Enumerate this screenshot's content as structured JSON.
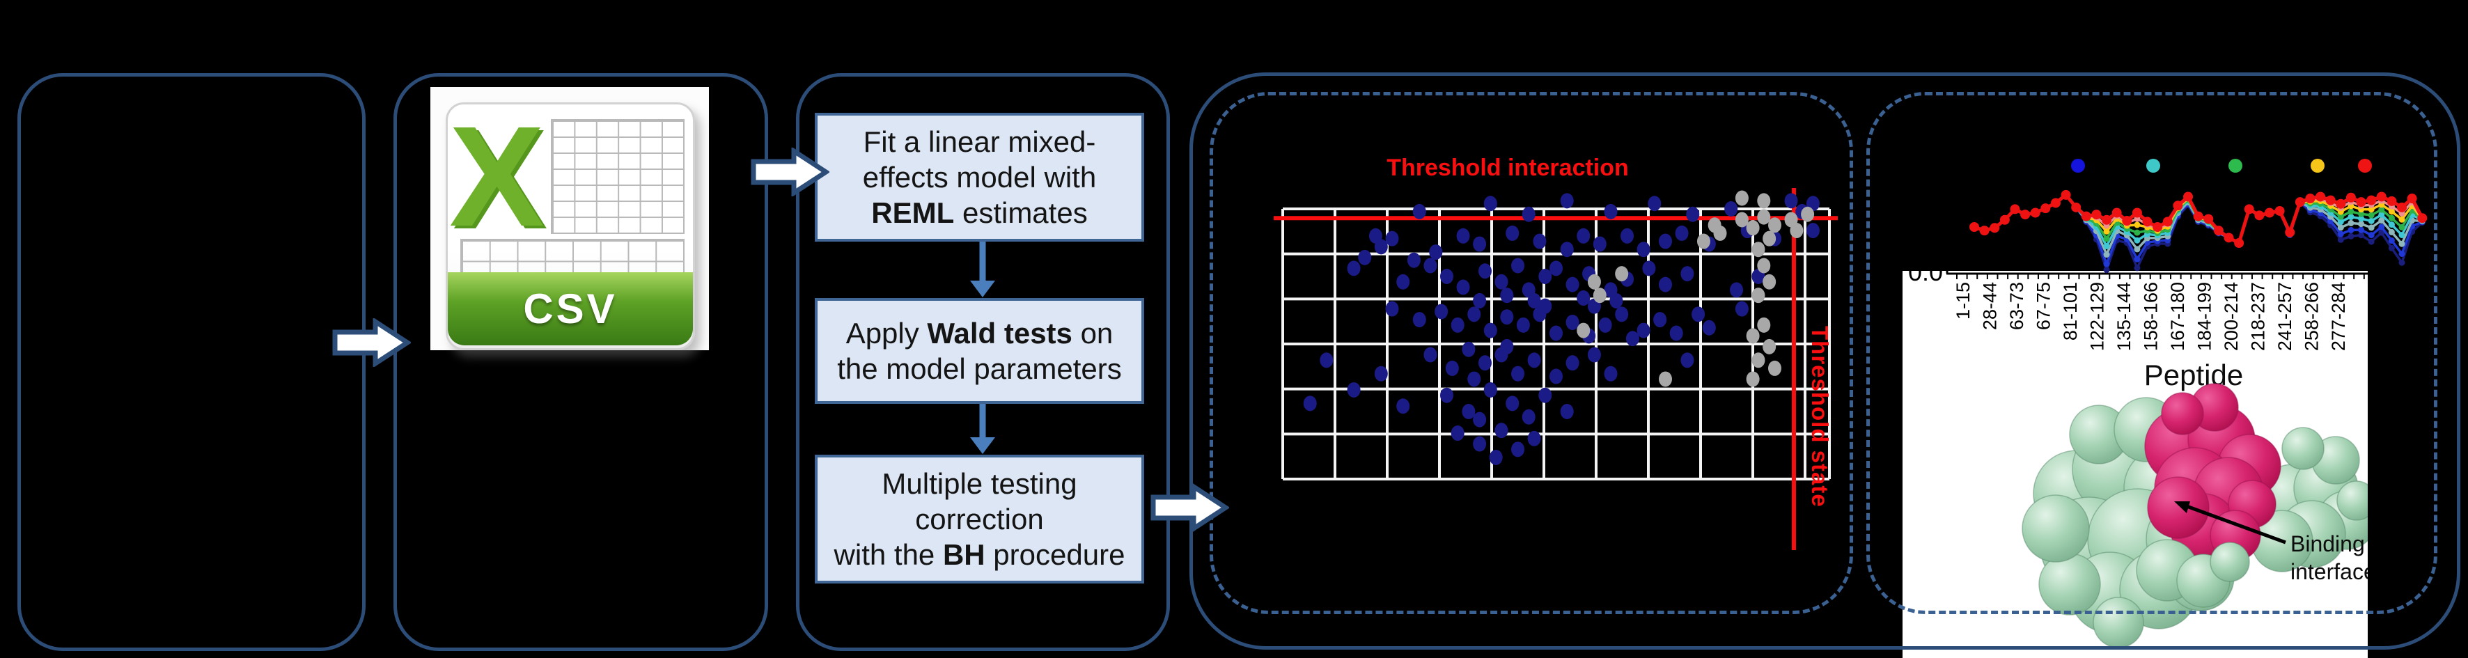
{
  "colors": {
    "background": "#000000",
    "panel_border": "#2d4d79",
    "dashed_border": "#3a6191",
    "flow_box_fill": "#dce6f4",
    "flow_box_border": "#3f6695",
    "flow_arrow": "#4a7ebc",
    "block_arrow_fill": "#ffffff",
    "threshold_red": "#f90f0f",
    "grid_line": "#f4f4f4",
    "scatter_blue": "#1b1b87",
    "scatter_gray": "#a8a8a8",
    "csv_green": "#5ea226"
  },
  "csv_icon": {
    "letter": "X",
    "banner": "CSV"
  },
  "pipeline": {
    "steps": [
      {
        "lines": [
          "Fit a linear mixed-",
          "effects model with",
          "**REML** estimates"
        ]
      },
      {
        "lines": [
          "Apply **Wald tests** on",
          "the model parameters"
        ]
      },
      {
        "lines": [
          "Multiple testing",
          "correction",
          "with the **BH** procedure"
        ]
      }
    ]
  },
  "chart_data": [
    {
      "type": "scatter",
      "title": "Threshold interaction",
      "state_label": "Threshold state",
      "grid": {
        "cols": 10,
        "rows": 6,
        "grid_on": true
      },
      "threshold_interaction_y": 0.034,
      "threshold_state_x": 0.935,
      "series": [
        {
          "name": "interaction-points",
          "color": "#1b1b87",
          "points": [
            [
              0.25,
              0.01
            ],
            [
              0.38,
              -0.02
            ],
            [
              0.45,
              0.02
            ],
            [
              0.52,
              -0.03
            ],
            [
              0.6,
              0.01
            ],
            [
              0.68,
              -0.02
            ],
            [
              0.75,
              0.02
            ],
            [
              0.82,
              0.0
            ],
            [
              0.93,
              -0.03
            ],
            [
              0.95,
              0.01
            ],
            [
              0.97,
              -0.02
            ],
            [
              0.17,
              0.1
            ],
            [
              0.18,
              0.14
            ],
            [
              0.2,
              0.11
            ],
            [
              0.28,
              0.16
            ],
            [
              0.33,
              0.1
            ],
            [
              0.36,
              0.13
            ],
            [
              0.42,
              0.09
            ],
            [
              0.47,
              0.12
            ],
            [
              0.52,
              0.15
            ],
            [
              0.55,
              0.1
            ],
            [
              0.58,
              0.13
            ],
            [
              0.63,
              0.1
            ],
            [
              0.66,
              0.15
            ],
            [
              0.7,
              0.12
            ],
            [
              0.73,
              0.09
            ],
            [
              0.78,
              0.13
            ],
            [
              0.85,
              0.08
            ],
            [
              0.9,
              0.11
            ],
            [
              0.97,
              0.08
            ],
            [
              0.15,
              0.18
            ],
            [
              0.24,
              0.19
            ],
            [
              0.13,
              0.22
            ],
            [
              0.22,
              0.27
            ],
            [
              0.27,
              0.21
            ],
            [
              0.3,
              0.25
            ],
            [
              0.33,
              0.29
            ],
            [
              0.37,
              0.23
            ],
            [
              0.4,
              0.27
            ],
            [
              0.43,
              0.21
            ],
            [
              0.45,
              0.3
            ],
            [
              0.48,
              0.25
            ],
            [
              0.5,
              0.22
            ],
            [
              0.53,
              0.28
            ],
            [
              0.56,
              0.24
            ],
            [
              0.6,
              0.3
            ],
            [
              0.63,
              0.26
            ],
            [
              0.67,
              0.22
            ],
            [
              0.7,
              0.28
            ],
            [
              0.74,
              0.24
            ],
            [
              0.55,
              0.33
            ],
            [
              0.46,
              0.34
            ],
            [
              0.41,
              0.32
            ],
            [
              0.36,
              0.34
            ],
            [
              0.61,
              0.34
            ],
            [
              0.87,
              0.25
            ],
            [
              0.83,
              0.3
            ],
            [
              0.2,
              0.37
            ],
            [
              0.25,
              0.41
            ],
            [
              0.29,
              0.38
            ],
            [
              0.32,
              0.43
            ],
            [
              0.35,
              0.39
            ],
            [
              0.38,
              0.45
            ],
            [
              0.41,
              0.4
            ],
            [
              0.44,
              0.43
            ],
            [
              0.47,
              0.39
            ],
            [
              0.5,
              0.46
            ],
            [
              0.53,
              0.42
            ],
            [
              0.56,
              0.47
            ],
            [
              0.59,
              0.43
            ],
            [
              0.62,
              0.39
            ],
            [
              0.66,
              0.45
            ],
            [
              0.69,
              0.41
            ],
            [
              0.72,
              0.46
            ],
            [
              0.76,
              0.39
            ],
            [
              0.64,
              0.48
            ],
            [
              0.57,
              0.36
            ],
            [
              0.48,
              0.36
            ],
            [
              0.78,
              0.44
            ],
            [
              0.84,
              0.37
            ],
            [
              0.08,
              0.56
            ],
            [
              0.18,
              0.61
            ],
            [
              0.27,
              0.54
            ],
            [
              0.31,
              0.59
            ],
            [
              0.34,
              0.52
            ],
            [
              0.37,
              0.57
            ],
            [
              0.4,
              0.54
            ],
            [
              0.43,
              0.61
            ],
            [
              0.46,
              0.56
            ],
            [
              0.5,
              0.62
            ],
            [
              0.53,
              0.57
            ],
            [
              0.57,
              0.54
            ],
            [
              0.6,
              0.61
            ],
            [
              0.35,
              0.63
            ],
            [
              0.41,
              0.51
            ],
            [
              0.74,
              0.56
            ],
            [
              0.05,
              0.72
            ],
            [
              0.13,
              0.67
            ],
            [
              0.22,
              0.73
            ],
            [
              0.3,
              0.69
            ],
            [
              0.34,
              0.75
            ],
            [
              0.38,
              0.67
            ],
            [
              0.42,
              0.72
            ],
            [
              0.45,
              0.77
            ],
            [
              0.48,
              0.69
            ],
            [
              0.52,
              0.75
            ],
            [
              0.36,
              0.78
            ],
            [
              0.32,
              0.83
            ],
            [
              0.36,
              0.87
            ],
            [
              0.4,
              0.82
            ],
            [
              0.43,
              0.89
            ],
            [
              0.39,
              0.92
            ],
            [
              0.46,
              0.85
            ]
          ]
        },
        {
          "name": "state-points",
          "color": "#a8a8a8",
          "points": [
            [
              0.57,
              0.27
            ],
            [
              0.58,
              0.32
            ],
            [
              0.62,
              0.24
            ],
            [
              0.77,
              0.12
            ],
            [
              0.79,
              0.06
            ],
            [
              0.8,
              0.09
            ],
            [
              0.84,
              0.04
            ],
            [
              0.86,
              0.07
            ],
            [
              0.88,
              0.03
            ],
            [
              0.89,
              0.11
            ],
            [
              0.9,
              0.06
            ],
            [
              0.87,
              0.15
            ],
            [
              0.88,
              0.21
            ],
            [
              0.89,
              0.27
            ],
            [
              0.87,
              0.32
            ],
            [
              0.88,
              0.43
            ],
            [
              0.86,
              0.47
            ],
            [
              0.89,
              0.51
            ],
            [
              0.87,
              0.56
            ],
            [
              0.9,
              0.59
            ],
            [
              0.7,
              0.63
            ],
            [
              0.86,
              0.63
            ],
            [
              0.55,
              0.45
            ],
            [
              0.93,
              0.04
            ],
            [
              0.96,
              0.02
            ],
            [
              0.94,
              0.08
            ],
            [
              0.84,
              -0.04
            ],
            [
              0.88,
              -0.03
            ]
          ]
        }
      ]
    },
    {
      "type": "line",
      "xlabel": "Peptide",
      "y_tick_label": "0.0",
      "categories": [
        "1-15",
        "28-44",
        "63-73",
        "67-75",
        "81-101",
        "122-129",
        "135-144",
        "158-166",
        "167-180",
        "184-199",
        "200-214",
        "218-237",
        "241-257",
        "258-266",
        "277-284"
      ],
      "points_per_category": 3,
      "legend_dot_colors": [
        "#1414dd",
        "#3ec8c8",
        "#2ebb4e",
        "#f5c51a",
        "#ee1414"
      ],
      "base": [
        0.5,
        0.46,
        0.49,
        0.58,
        0.7,
        0.64,
        0.66,
        0.71,
        0.77,
        0.86,
        0.72,
        0.62,
        0.64,
        0.58,
        0.66,
        0.57,
        0.66,
        0.56,
        0.5,
        0.56,
        0.74,
        0.84,
        0.62,
        0.59,
        0.46,
        0.38,
        0.32,
        0.7,
        0.63,
        0.66,
        0.68,
        0.44,
        0.78,
        0.82,
        0.84,
        0.8,
        0.76,
        0.83,
        0.78,
        0.8,
        0.84,
        0.79,
        0.72,
        0.82,
        0.6
      ],
      "dip": [
        0,
        0,
        0,
        0,
        0,
        0,
        0,
        0,
        0,
        0,
        0,
        0.1,
        0.45,
        0.95,
        0.5,
        0.4,
        1.0,
        0.45,
        0.3,
        0.4,
        0.2,
        0.15,
        0.1,
        0.12,
        0.05,
        0,
        0,
        0,
        0,
        0,
        0,
        0.05,
        0,
        0.25,
        0.35,
        0.45,
        0.65,
        0.7,
        0.6,
        0.75,
        0.65,
        0.85,
        1.0,
        0.6,
        0.08
      ],
      "dip_scale": 0.62,
      "series": [
        {
          "name": "series-navy",
          "color": "#1a1e7d",
          "dip_factor": 1.0,
          "width": 3.5,
          "marker": 4.5
        },
        {
          "name": "series-blue",
          "color": "#2038d5",
          "dip_factor": 0.84,
          "width": 3.5,
          "marker": 4.5
        },
        {
          "name": "series-steel",
          "color": "#8fb6ba",
          "dip_factor": 0.66,
          "width": 3.5,
          "marker": 4.5
        },
        {
          "name": "series-cyan",
          "color": "#3fc8d4",
          "dip_factor": 0.5,
          "width": 3.5,
          "marker": 4.5
        },
        {
          "name": "series-green",
          "color": "#2db24a",
          "dip_factor": 0.36,
          "width": 3.5,
          "marker": 4.5
        },
        {
          "name": "series-yellow",
          "color": "#fdc913",
          "dip_factor": 0.22,
          "width": 3.5,
          "marker": 4.5
        },
        {
          "name": "series-pink",
          "color": "#ef9090",
          "dip_factor": 0.11,
          "width": 3.5,
          "marker": 4.5
        },
        {
          "name": "series-red",
          "color": "#ee1212",
          "dip_factor": 0.0,
          "width": 5,
          "marker": 7
        }
      ]
    }
  ],
  "protein": {
    "annotation_lines": [
      "Binding",
      "interface"
    ]
  }
}
